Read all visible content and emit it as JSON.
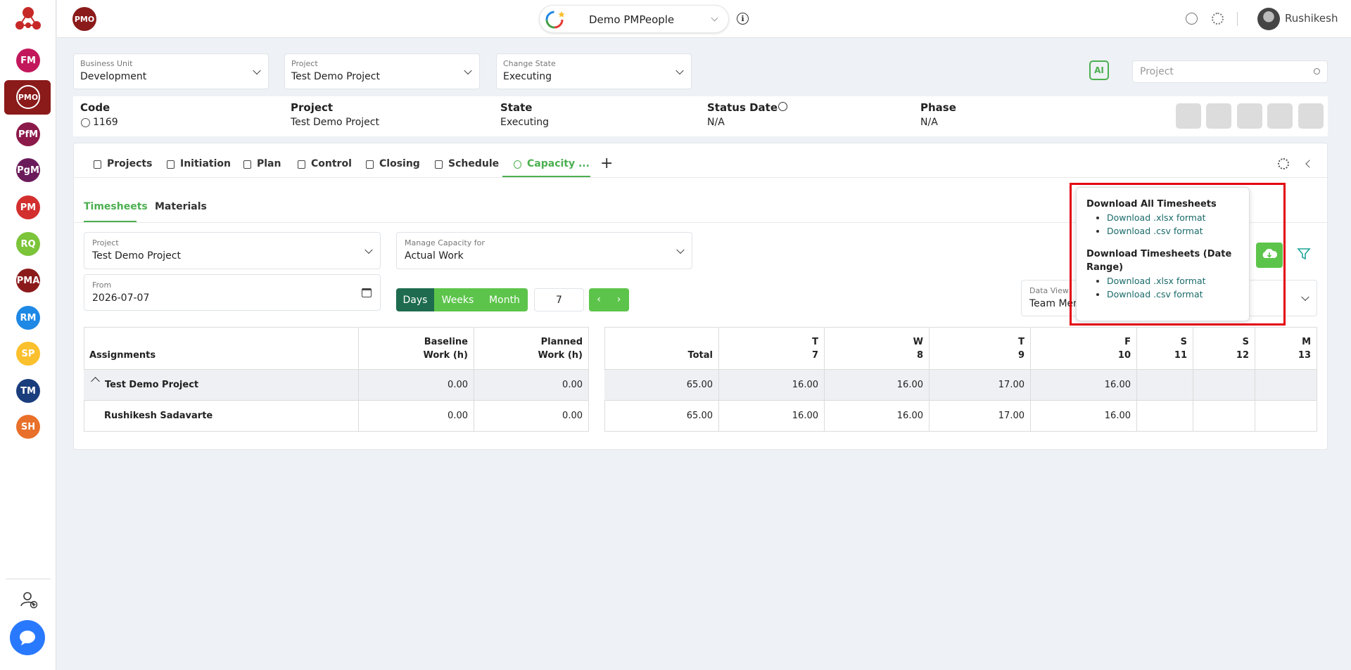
{
  "header": {
    "badge": "PMO",
    "workspace": "Demo PMPeople",
    "user": "Rushikesh"
  },
  "sidebar": {
    "modules": [
      "FM",
      "PMO",
      "PfM",
      "PgM",
      "PM",
      "RQ",
      "PMA",
      "RM",
      "SP",
      "TM",
      "SH"
    ]
  },
  "filters": [
    {
      "label": "Business Unit",
      "value": "Development"
    },
    {
      "label": "Project",
      "value": "Test Demo Project"
    },
    {
      "label": "Change State",
      "value": "Executing"
    }
  ],
  "ai_button": "AI",
  "search_placeholder": "Project",
  "summary": [
    {
      "label": "Code",
      "value": "1169"
    },
    {
      "label": "Project",
      "value": "Test Demo Project"
    },
    {
      "label": "State",
      "value": "Executing"
    },
    {
      "label": "Status Date",
      "value": "N/A"
    },
    {
      "label": "Phase",
      "value": "N/A"
    }
  ],
  "tabs": [
    "Projects",
    "Initiation",
    "Plan",
    "Control",
    "Closing",
    "Schedule",
    "Capacity ..."
  ],
  "subtabs": [
    "Timesheets",
    "Materials"
  ],
  "form": {
    "project": {
      "label": "Project",
      "value": "Test Demo Project"
    },
    "manage": {
      "label": "Manage Capacity for",
      "value": "Actual Work"
    },
    "from": {
      "label": "From",
      "value": "2026-07-07"
    },
    "periods": [
      "Days",
      "Weeks",
      "Month"
    ],
    "count": 7,
    "data_view": {
      "label": "Data View",
      "value": "Team Mem"
    }
  },
  "download_menu": {
    "sections": [
      {
        "heading": "Download All Timesheets",
        "links": [
          "Download .xlsx format",
          "Download .csv format"
        ]
      },
      {
        "heading": "Download Timesheets (Date Range)",
        "links": [
          "Download .xlsx format",
          "Download .csv format"
        ]
      }
    ]
  },
  "table_left": {
    "headers": [
      [
        "Assignments"
      ],
      [
        "Baseline",
        "Work (h)"
      ],
      [
        "Planned",
        "Work (h)"
      ]
    ],
    "rows": [
      [
        "Test Demo Project",
        "0.00",
        "0.00"
      ],
      [
        "Rushikesh Sadavarte",
        "0.00",
        "0.00"
      ]
    ]
  },
  "table_right": {
    "headers": [
      [
        "Total"
      ],
      [
        "T",
        "7"
      ],
      [
        "W",
        "8"
      ],
      [
        "T",
        "9"
      ],
      [
        "F",
        "10"
      ],
      [
        "S",
        "11"
      ],
      [
        "S",
        "12"
      ],
      [
        "M",
        "13"
      ]
    ],
    "rows": [
      [
        "65.00",
        "16.00",
        "16.00",
        "17.00",
        "16.00",
        null,
        null,
        null
      ],
      [
        "65.00",
        "16.00",
        "16.00",
        "17.00",
        "16.00",
        null,
        null,
        null
      ]
    ]
  }
}
